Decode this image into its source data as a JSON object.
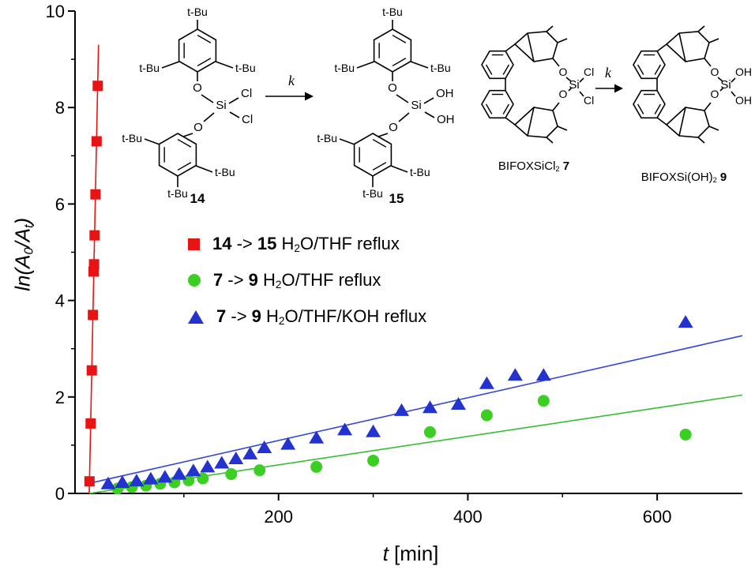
{
  "axis": {
    "ylabel_rich": [
      {
        "t": "ln(",
        "s": "I"
      },
      {
        "t": "A",
        "s": "I"
      },
      {
        "t": "0",
        "s": "IS"
      },
      {
        "t": "/",
        "s": "I"
      },
      {
        "t": "A",
        "s": "I"
      },
      {
        "t": "t",
        "s": "IS"
      },
      {
        "t": ")",
        "s": "I"
      }
    ],
    "xlabel_rich": [
      {
        "t": "t",
        "s": "I"
      },
      {
        "t": " [min]",
        "s": ""
      }
    ]
  },
  "chart_data": {
    "type": "scatter",
    "title": "",
    "xlabel": "t [min]",
    "ylabel": "ln(A0/At)",
    "xlim": [
      -15,
      690
    ],
    "ylim": [
      0,
      10
    ],
    "xticks": [
      200,
      400,
      600
    ],
    "xticks_minor": [
      100,
      300,
      500
    ],
    "yticks": [
      0,
      2,
      4,
      6,
      8,
      10
    ],
    "yticks_minor": [
      1,
      3,
      5,
      7,
      9
    ],
    "grid": false,
    "legend_position": "upper-left-inside",
    "series": [
      {
        "name": "14 -> 15 H2O/THF reflux",
        "marker": "square",
        "color": "#e81414",
        "line_color": "#e81414",
        "x": [
          0.3,
          1.5,
          2.7,
          3.9,
          4.6,
          5.1,
          5.7,
          6.6,
          7.8,
          9.0
        ],
        "y": [
          0.25,
          1.45,
          2.55,
          3.7,
          4.6,
          4.75,
          5.35,
          6.2,
          7.3,
          8.45
        ],
        "fit_line": {
          "x": [
            0,
            9.8
          ],
          "y": [
            0,
            9.3
          ]
        }
      },
      {
        "name": "7 -> 9 H2O/THF reflux",
        "marker": "circle",
        "color": "#3bcf24",
        "line_color": "#35bf35",
        "x": [
          30,
          45,
          60,
          75,
          90,
          105,
          120,
          150,
          180,
          240,
          300,
          360,
          420,
          480,
          630
        ],
        "y": [
          0.1,
          0.13,
          0.16,
          0.2,
          0.23,
          0.27,
          0.31,
          0.4,
          0.48,
          0.55,
          0.68,
          1.27,
          1.62,
          1.92,
          1.22
        ],
        "fit_line": {
          "x": [
            0,
            690
          ],
          "y": [
            0,
            2.04
          ]
        }
      },
      {
        "name": "7 -> 9 H2O/THF/KOH reflux",
        "marker": "triangle",
        "color": "#2433cf",
        "line_color": "#3347dd",
        "x": [
          20,
          35,
          50,
          65,
          80,
          95,
          110,
          125,
          140,
          155,
          170,
          185,
          210,
          240,
          270,
          300,
          330,
          360,
          390,
          420,
          450,
          480,
          630
        ],
        "y": [
          0.2,
          0.23,
          0.26,
          0.3,
          0.34,
          0.4,
          0.47,
          0.55,
          0.63,
          0.72,
          0.82,
          0.95,
          1.02,
          1.15,
          1.32,
          1.28,
          1.72,
          1.78,
          1.85,
          2.28,
          2.45,
          2.45,
          3.55
        ],
        "fit_line": {
          "x": [
            0,
            690
          ],
          "y": [
            0.21,
            3.27
          ]
        }
      }
    ]
  },
  "legend": {
    "items": [
      {
        "marker": "square",
        "color": "#e81414",
        "rich": [
          {
            "t": "14",
            "s": "B"
          },
          {
            "t": " -> ",
            "s": ""
          },
          {
            "t": "15",
            "s": "B"
          },
          {
            "t": " H",
            "s": ""
          },
          {
            "t": "2",
            "s": "S"
          },
          {
            "t": "O/THF reflux",
            "s": ""
          }
        ]
      },
      {
        "marker": "circle",
        "color": "#3bcf24",
        "rich": [
          {
            "t": "7",
            "s": "B"
          },
          {
            "t": " -> ",
            "s": ""
          },
          {
            "t": "9",
            "s": "B"
          },
          {
            "t": " H",
            "s": ""
          },
          {
            "t": "2",
            "s": "S"
          },
          {
            "t": "O/THF reflux",
            "s": ""
          }
        ]
      },
      {
        "marker": "triangle",
        "color": "#2433cf",
        "rich": [
          {
            "t": "7",
            "s": "B"
          },
          {
            "t": " -> ",
            "s": ""
          },
          {
            "t": "9",
            "s": "B"
          },
          {
            "t": " H",
            "s": ""
          },
          {
            "t": "2",
            "s": "S"
          },
          {
            "t": "O/THF/KOH reflux",
            "s": ""
          }
        ]
      }
    ]
  },
  "schemes": {
    "atom": {
      "tbu": "t-Bu",
      "o": "O",
      "si": "Si"
    },
    "k": "k",
    "scheme1": {
      "left": {
        "caption_rich": [
          {
            "t": "14",
            "s": "B"
          }
        ],
        "substituents": [
          "Cl",
          "Cl"
        ]
      },
      "right": {
        "caption_rich": [
          {
            "t": "15",
            "s": "B"
          }
        ],
        "substituents": [
          "OH",
          "OH"
        ]
      }
    },
    "scheme2": {
      "left": {
        "caption_rich": [
          {
            "t": "BIFOXSiCl",
            "s": ""
          },
          {
            "t": "2",
            "s": "S"
          },
          {
            "t": " ",
            "s": ""
          },
          {
            "t": "7",
            "s": "B"
          }
        ],
        "substituents": [
          "Cl",
          "Cl"
        ]
      },
      "right": {
        "caption_rich": [
          {
            "t": "BIFOXSi(OH)",
            "s": ""
          },
          {
            "t": "2",
            "s": "S"
          },
          {
            "t": " ",
            "s": ""
          },
          {
            "t": "9",
            "s": "B"
          }
        ],
        "substituents": [
          "OH",
          "OH"
        ]
      }
    }
  }
}
